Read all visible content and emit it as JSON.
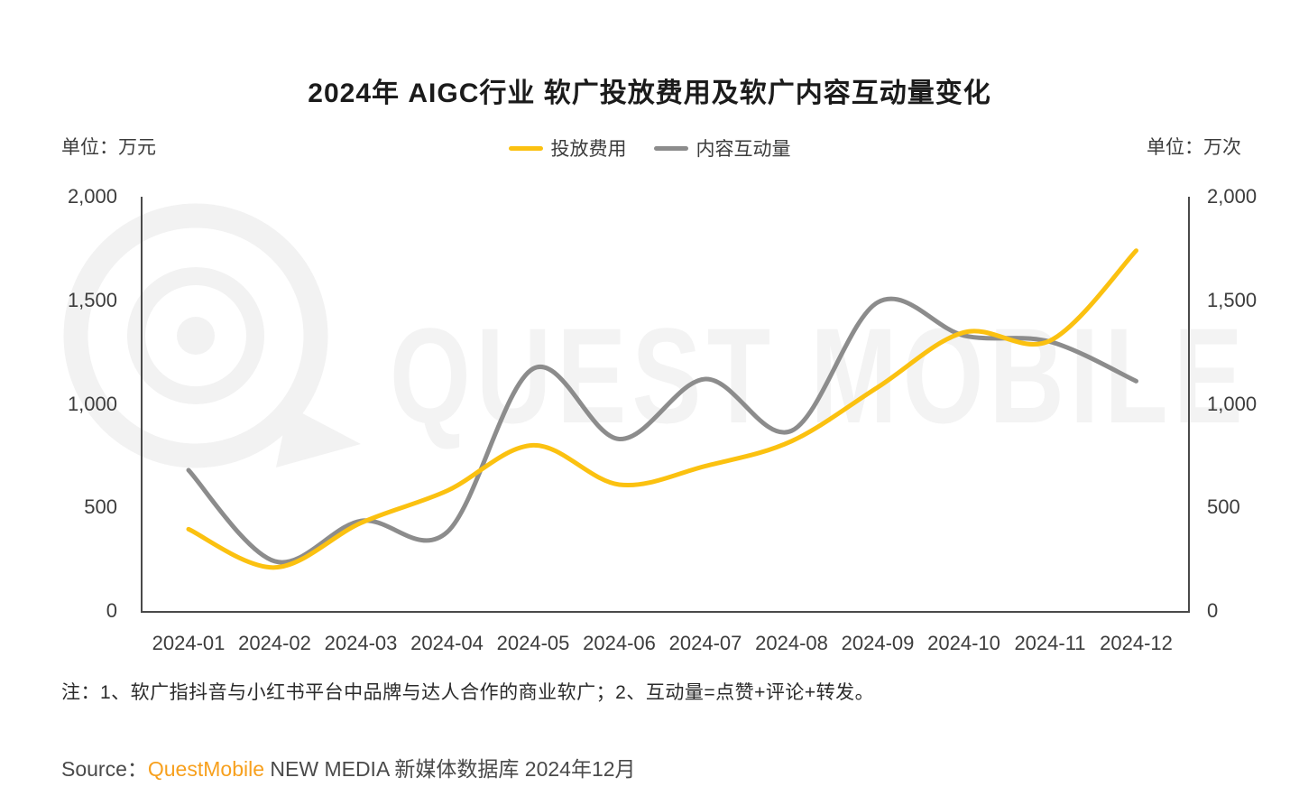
{
  "title": "2024年 AIGC行业 软广投放费用及软广内容互动量变化",
  "left_unit": "单位：万元",
  "right_unit": "单位：万次",
  "legend": [
    {
      "label": "投放费用",
      "color": "#FBC110"
    },
    {
      "label": "内容互动量",
      "color": "#8C8C8C"
    }
  ],
  "note": "注：1、软广指抖音与小红书平台中品牌与达人合作的商业软广；2、互动量=点赞+评论+转发。",
  "source": {
    "prefix": "Source：",
    "brand": "QuestMobile",
    "brand_color": "#F7A01D",
    "suffix": " NEW MEDIA 新媒体数据库 2024年12月"
  },
  "watermark": {
    "text": "QUEST MOBILE",
    "color": "#f3f3f3",
    "logo_color": "#f2f2f2"
  },
  "chart_data": {
    "type": "line",
    "smooth": true,
    "grid": false,
    "legend_position": "top-center",
    "categories": [
      "2024-01",
      "2024-02",
      "2024-03",
      "2024-04",
      "2024-05",
      "2024-06",
      "2024-07",
      "2024-08",
      "2024-09",
      "2024-10",
      "2024-11",
      "2024-12"
    ],
    "series": [
      {
        "name": "投放费用",
        "unit": "万元",
        "axis": "left",
        "color": "#FBC110",
        "values": [
          395,
          210,
          425,
          580,
          800,
          610,
          700,
          820,
          1080,
          1345,
          1305,
          1740
        ]
      },
      {
        "name": "内容互动量",
        "unit": "万次",
        "axis": "right",
        "color": "#8C8C8C",
        "values": [
          680,
          240,
          435,
          380,
          1170,
          830,
          1120,
          870,
          1490,
          1330,
          1300,
          1110
        ]
      }
    ],
    "ylim": [
      0,
      2000
    ],
    "y_ticks": [
      0,
      500,
      1000,
      1500,
      2000
    ],
    "y_tick_labels": [
      "0",
      "500",
      "1,000",
      "1,500",
      "2,000"
    ],
    "axis_color": "#4a4a4a"
  }
}
